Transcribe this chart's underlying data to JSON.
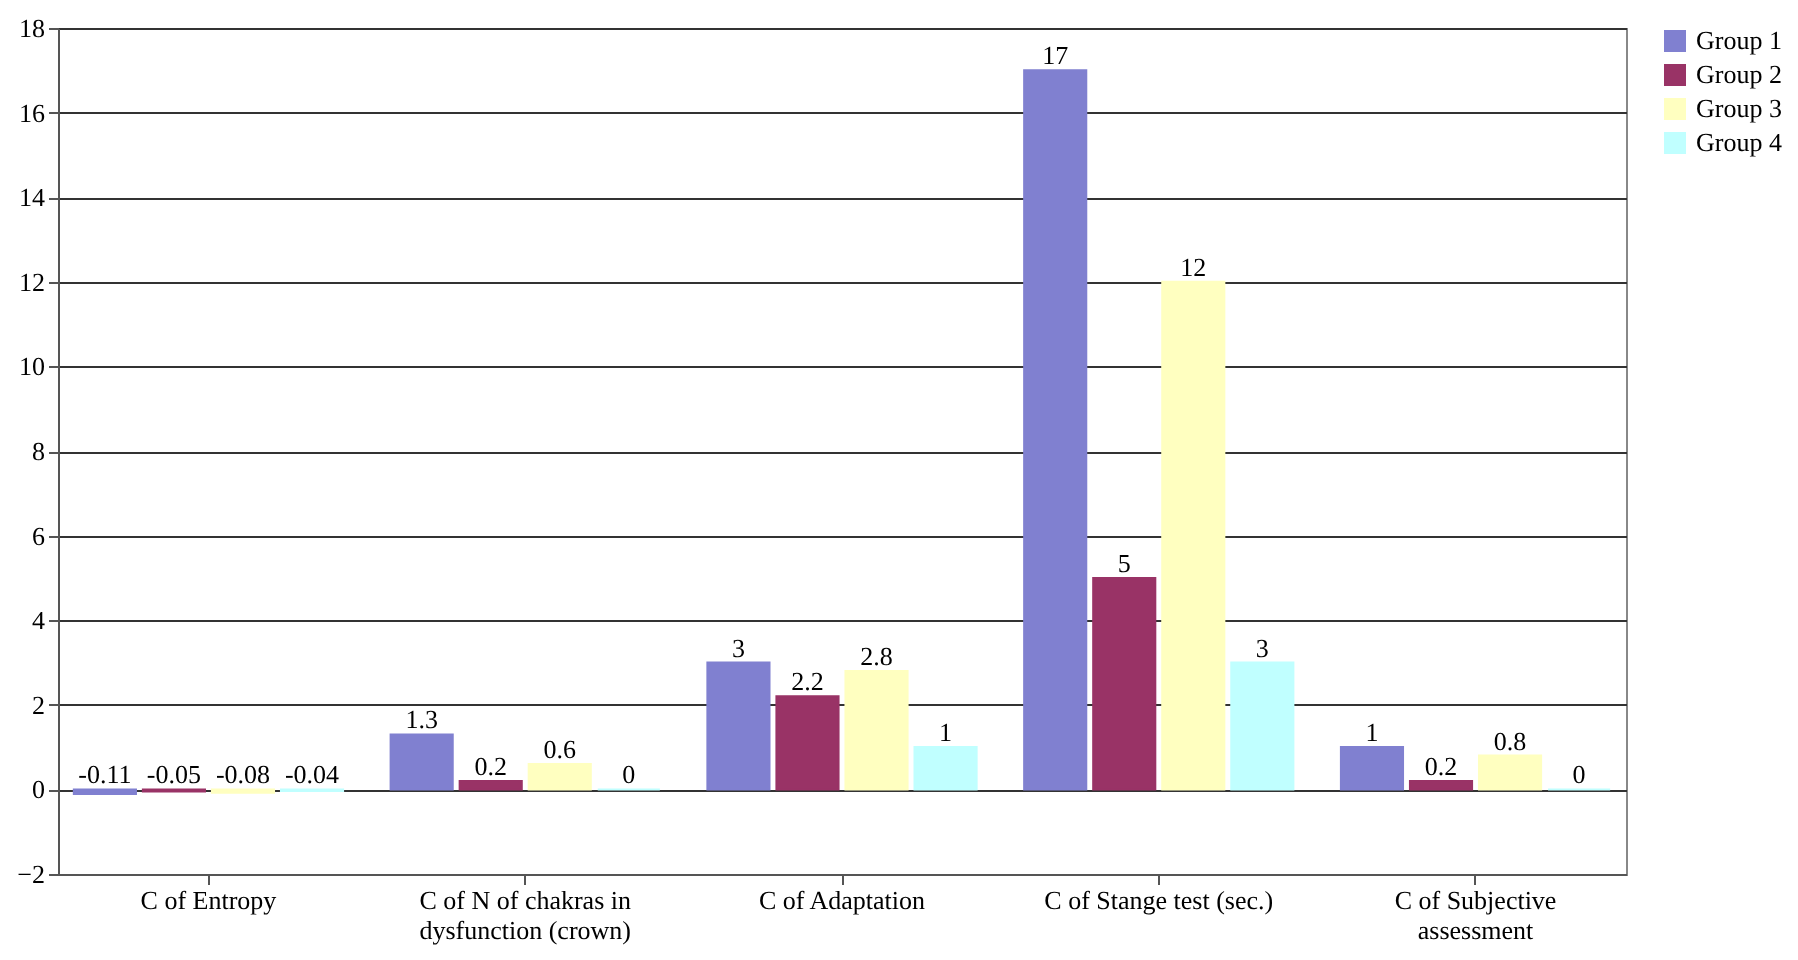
{
  "chart_data": {
    "type": "bar",
    "categories": [
      "C of Entropy",
      "C of N of chakras in dysfunction (crown)",
      "C of Adaptation",
      "C of Stange test (sec.)",
      "C of Subjective assessment"
    ],
    "series": [
      {
        "name": "Group 1",
        "color": "#8080d0",
        "values": [
          -0.11,
          1.3,
          3,
          17,
          1
        ]
      },
      {
        "name": "Group 2",
        "color": "#993366",
        "values": [
          -0.05,
          0.2,
          2.2,
          5,
          0.2
        ]
      },
      {
        "name": "Group 3",
        "color": "#ffffc0",
        "values": [
          -0.08,
          0.6,
          2.8,
          12,
          0.8
        ]
      },
      {
        "name": "Group 4",
        "color": "#c0ffff",
        "values": [
          -0.04,
          0,
          1,
          3,
          0
        ]
      }
    ],
    "ylim": [
      -2,
      18
    ],
    "yticks": [
      -2,
      0,
      2,
      4,
      6,
      8,
      10,
      12,
      14,
      16,
      18
    ],
    "grid": "y",
    "legend": "right",
    "data_labels": true
  }
}
